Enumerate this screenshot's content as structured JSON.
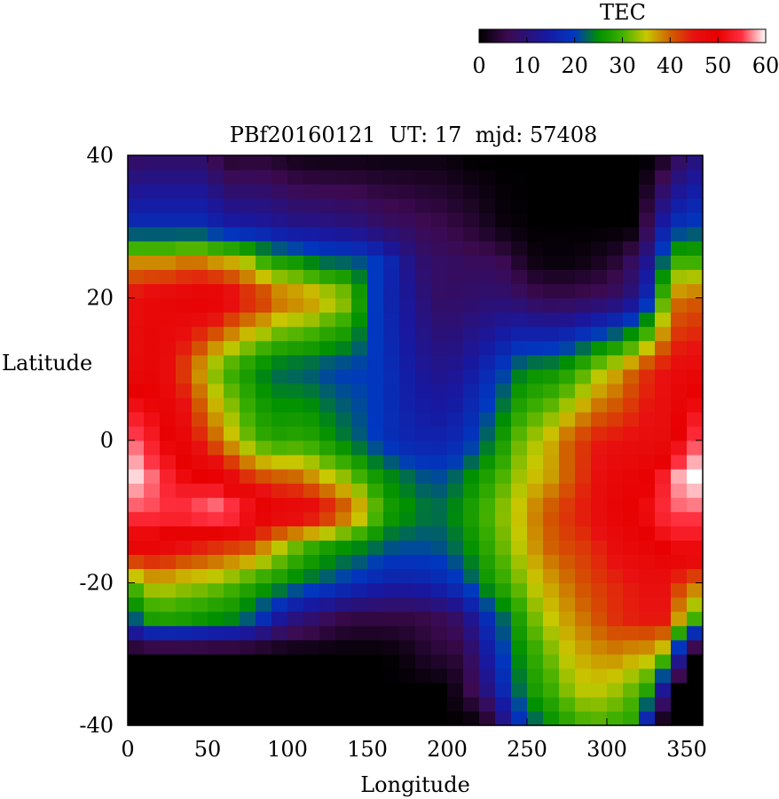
{
  "chart_data": {
    "type": "heatmap",
    "title": "PBf20160121  UT: 17  mjd: 57408",
    "xlabel": "Longitude",
    "ylabel": "Latitude",
    "xlim": [
      0,
      360
    ],
    "ylim": [
      -40,
      40
    ],
    "x_ticks": [
      0,
      50,
      100,
      150,
      200,
      250,
      300,
      350
    ],
    "y_ticks": [
      -40,
      -20,
      0,
      20,
      40
    ],
    "colorbar": {
      "label": "TEC",
      "range": [
        0,
        60
      ],
      "ticks": [
        0,
        10,
        20,
        30,
        40,
        50,
        60
      ],
      "stops": [
        {
          "v": 0,
          "color": "#000000"
        },
        {
          "v": 6,
          "color": "#3c0a50"
        },
        {
          "v": 14,
          "color": "#1818a0"
        },
        {
          "v": 20,
          "color": "#0038c0"
        },
        {
          "v": 25,
          "color": "#009000"
        },
        {
          "v": 30,
          "color": "#40b000"
        },
        {
          "v": 35,
          "color": "#c8c800"
        },
        {
          "v": 40,
          "color": "#d06000"
        },
        {
          "v": 45,
          "color": "#e81010"
        },
        {
          "v": 50,
          "color": "#e80000"
        },
        {
          "v": 55,
          "color": "#ff3040"
        },
        {
          "v": 60,
          "color": "#ffffff"
        }
      ]
    },
    "grid_resolution": {
      "dlon": 10,
      "dlat": 2
    },
    "longitudes": [
      0,
      10,
      20,
      30,
      40,
      50,
      60,
      70,
      80,
      90,
      100,
      110,
      120,
      130,
      140,
      150,
      160,
      170,
      180,
      190,
      200,
      210,
      220,
      230,
      240,
      250,
      260,
      270,
      280,
      290,
      300,
      310,
      320,
      330,
      340,
      350,
      360
    ],
    "latitudes": [
      40,
      30,
      25,
      20,
      10,
      0,
      -5,
      -10,
      -15,
      -20,
      -25,
      -30,
      -35,
      -40
    ],
    "tec_values": [
      [
        7,
        8,
        8,
        8,
        8,
        8,
        3,
        3,
        4,
        3,
        2,
        1,
        1,
        1,
        1,
        1,
        1,
        1,
        1,
        1,
        1,
        0,
        0,
        0,
        0,
        0,
        0,
        0,
        0,
        0,
        0,
        0,
        0,
        0,
        4,
        10,
        10
      ],
      [
        18,
        18,
        18,
        18,
        18,
        18,
        15,
        15,
        14,
        14,
        12,
        12,
        12,
        11,
        11,
        10,
        8,
        8,
        7,
        6,
        6,
        4,
        4,
        1,
        1,
        0,
        0,
        0,
        0,
        0,
        0,
        0,
        0,
        12,
        18,
        20,
        20
      ],
      [
        38,
        38,
        38,
        38,
        40,
        38,
        37,
        36,
        32,
        28,
        27,
        26,
        23,
        23,
        22,
        21,
        19,
        14,
        10,
        8,
        8,
        7,
        7,
        7,
        5,
        2,
        1,
        1,
        1,
        2,
        3,
        5,
        10,
        15,
        30,
        30,
        30
      ],
      [
        45,
        47,
        48,
        48,
        50,
        50,
        50,
        45,
        45,
        42,
        39,
        40,
        37,
        35,
        33,
        22,
        18,
        14,
        12,
        8,
        8,
        8,
        9,
        9,
        9,
        7,
        6,
        6,
        6,
        7,
        7,
        9,
        12,
        22,
        38,
        40,
        40
      ],
      [
        46,
        48,
        48,
        44,
        40,
        34,
        30,
        28,
        25,
        23,
        22,
        22,
        21,
        20,
        20,
        20,
        19,
        16,
        14,
        12,
        12,
        13,
        16,
        18,
        22,
        25,
        25,
        26,
        28,
        32,
        35,
        37,
        42,
        44,
        46,
        47,
        47
      ],
      [
        56,
        56,
        50,
        50,
        46,
        42,
        38,
        34,
        30,
        28,
        28,
        29,
        27,
        25,
        23,
        21,
        19,
        17,
        16,
        16,
        16,
        18,
        21,
        25,
        29,
        34,
        34,
        39,
        41,
        44,
        45,
        45,
        46,
        46,
        46,
        55,
        55
      ],
      [
        60,
        58,
        55,
        52,
        50,
        50,
        49,
        44,
        42,
        40,
        40,
        39,
        36,
        34,
        32,
        28,
        25,
        24,
        22,
        21,
        21,
        24,
        26,
        29,
        32,
        35,
        36,
        38,
        42,
        44,
        47,
        48,
        49,
        50,
        56,
        60,
        60
      ],
      [
        55,
        56,
        55,
        55,
        56,
        58,
        58,
        56,
        52,
        50,
        49,
        49,
        47,
        44,
        40,
        36,
        28,
        26,
        25,
        23,
        24,
        26,
        29,
        32,
        34,
        37,
        40,
        42,
        44,
        45,
        48,
        49,
        50,
        53,
        56,
        56,
        56
      ],
      [
        48,
        48,
        48,
        46,
        44,
        44,
        42,
        42,
        40,
        36,
        33,
        30,
        28,
        26,
        25,
        24,
        22,
        21,
        21,
        21,
        22,
        24,
        27,
        30,
        33,
        36,
        39,
        41,
        42,
        43,
        45,
        47,
        48,
        49,
        51,
        51,
        51
      ],
      [
        30,
        34,
        36,
        34,
        34,
        33,
        32,
        30,
        28,
        27,
        25,
        23,
        22,
        20,
        19,
        17,
        16,
        15,
        16,
        16,
        18,
        20,
        24,
        28,
        30,
        34,
        36,
        38,
        40,
        42,
        43,
        44,
        45,
        46,
        45,
        40,
        40
      ],
      [
        18,
        26,
        28,
        27,
        27,
        25,
        25,
        24,
        20,
        16,
        11,
        10,
        8,
        6,
        5,
        5,
        5,
        5,
        5,
        6,
        7,
        9,
        16,
        20,
        25,
        30,
        34,
        36,
        38,
        40,
        42,
        44,
        44,
        45,
        44,
        30,
        30
      ],
      [
        0,
        0,
        0,
        0,
        0,
        0,
        0,
        0,
        0,
        0,
        0,
        0,
        0,
        0,
        0,
        0,
        0,
        1,
        2,
        4,
        4,
        5,
        11,
        18,
        22,
        28,
        30,
        34,
        36,
        37,
        38,
        38,
        36,
        37,
        30,
        0,
        0
      ],
      [
        0,
        0,
        0,
        0,
        0,
        0,
        0,
        0,
        0,
        0,
        0,
        0,
        0,
        0,
        0,
        0,
        0,
        0,
        0,
        0,
        0,
        4,
        8,
        14,
        20,
        26,
        28,
        31,
        34,
        35,
        34,
        33,
        30,
        26,
        0,
        0,
        0
      ],
      [
        0,
        0,
        0,
        0,
        0,
        0,
        0,
        0,
        0,
        0,
        0,
        0,
        0,
        0,
        0,
        0,
        0,
        0,
        0,
        0,
        0,
        0,
        0,
        5,
        16,
        20,
        24,
        26,
        29,
        30,
        30,
        28,
        28,
        0,
        0,
        0,
        0
      ]
    ]
  }
}
